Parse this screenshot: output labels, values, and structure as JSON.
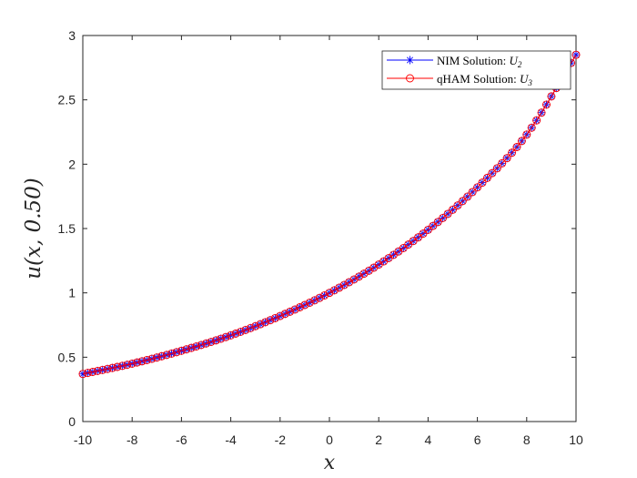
{
  "chart_data": {
    "type": "line",
    "xlabel": "x",
    "ylabel": "u(x, 0.50)",
    "xlim": [
      -10,
      10
    ],
    "ylim": [
      0,
      3
    ],
    "x_ticks": [
      "-10",
      "-8",
      "-6",
      "-4",
      "-2",
      "0",
      "2",
      "4",
      "6",
      "8",
      "10"
    ],
    "y_ticks": [
      "0",
      "0.5",
      "1",
      "1.5",
      "2",
      "2.5",
      "3"
    ],
    "grid": false,
    "legend_position": "top-right",
    "x": [
      -10,
      -8,
      -6,
      -4,
      -2,
      0,
      2,
      4,
      6,
      8,
      10
    ],
    "series": [
      {
        "name": "NIM Solution: U2",
        "label_text": "NIM Solution: ",
        "label_var": "U",
        "label_sub": "2",
        "color": "#0000ff",
        "marker": "asterisk",
        "values": [
          0.37,
          0.45,
          0.55,
          0.67,
          0.82,
          1.0,
          1.22,
          1.49,
          1.82,
          2.23,
          2.85
        ]
      },
      {
        "name": "qHAM Solution: U3",
        "label_text": "qHAM Solution: ",
        "label_var": "U",
        "label_sub": "3",
        "color": "#ff0000",
        "marker": "circle",
        "values": [
          0.37,
          0.45,
          0.55,
          0.67,
          0.82,
          1.0,
          1.22,
          1.49,
          1.82,
          2.23,
          2.85
        ]
      }
    ]
  }
}
